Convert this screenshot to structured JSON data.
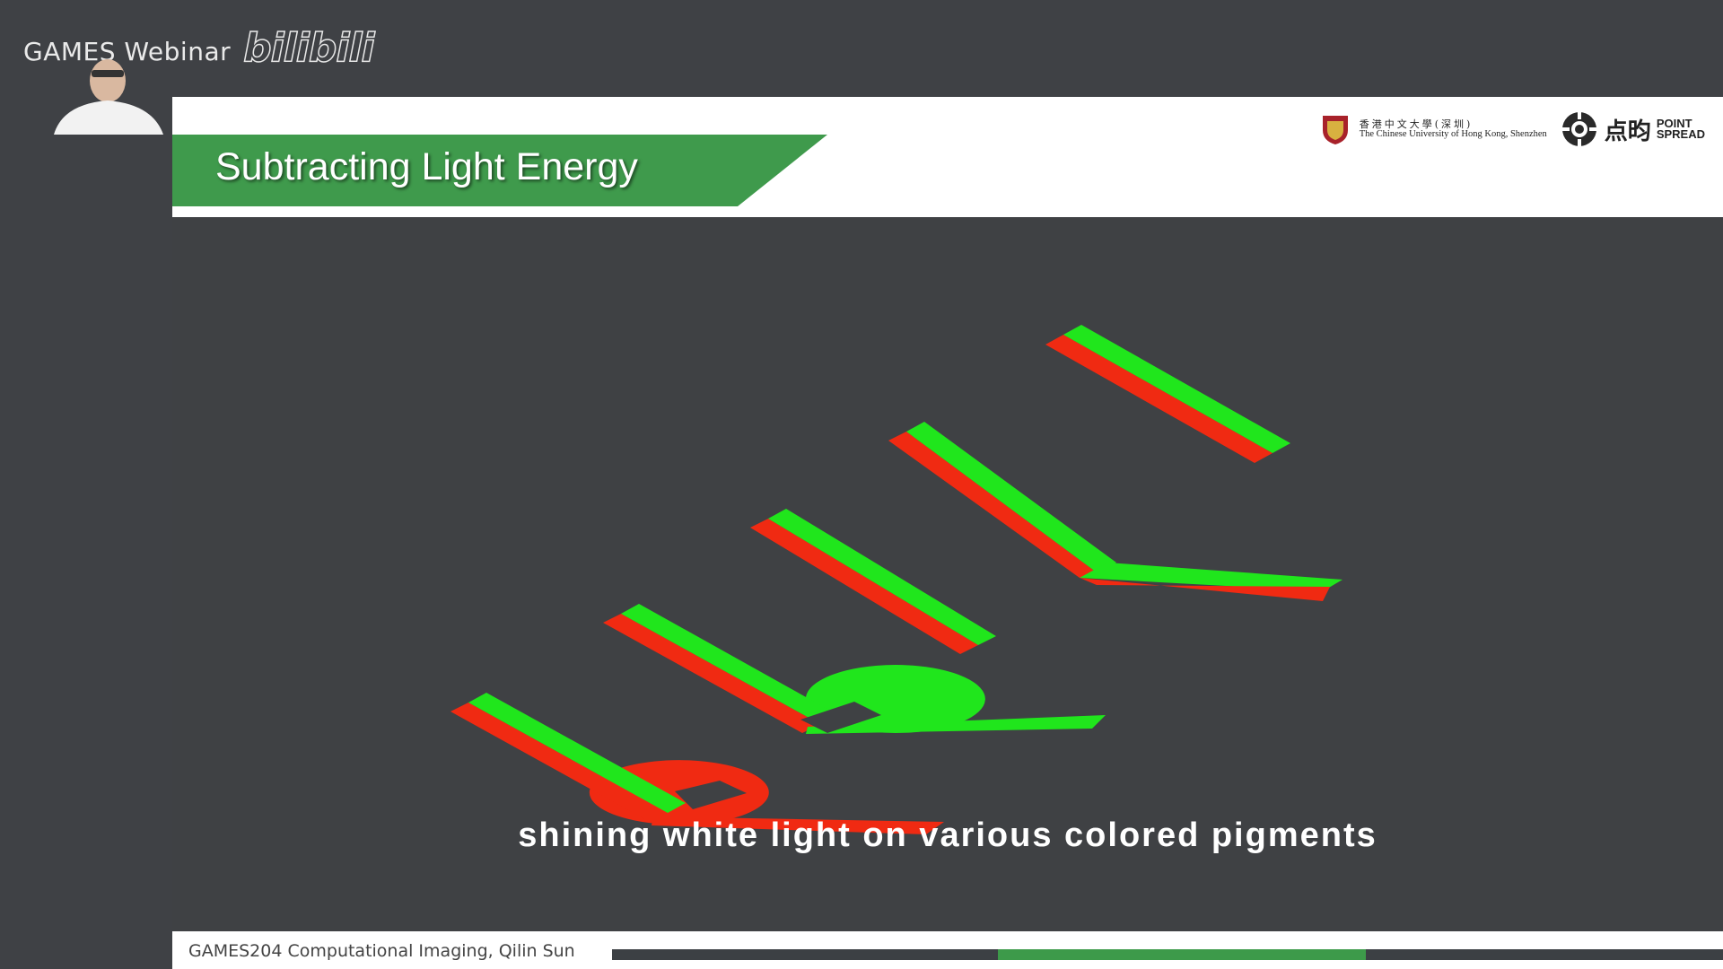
{
  "stream": {
    "watermark_text": "GAMES Webinar",
    "platform_logo": "bilibili",
    "webcam": "presenter-webcam"
  },
  "slide": {
    "title": "Subtracting Light Energy",
    "logos": {
      "university_cn": "香港中文大學(深圳)",
      "university_en": "The Chinese University of Hong Kong, Shenzhen",
      "company_cn": "点昀",
      "company_en_line1": "POINT",
      "company_en_line2": "SPREAD"
    },
    "caption": "shining white light on various colored pigments",
    "footer": "GAMES204 Computational Imaging, Qilin Sun"
  },
  "colors": {
    "banner_green": "#3f9a4c",
    "background_gray": "#3f4144",
    "ray_red": "#f02a12",
    "ray_green": "#20e61c"
  }
}
